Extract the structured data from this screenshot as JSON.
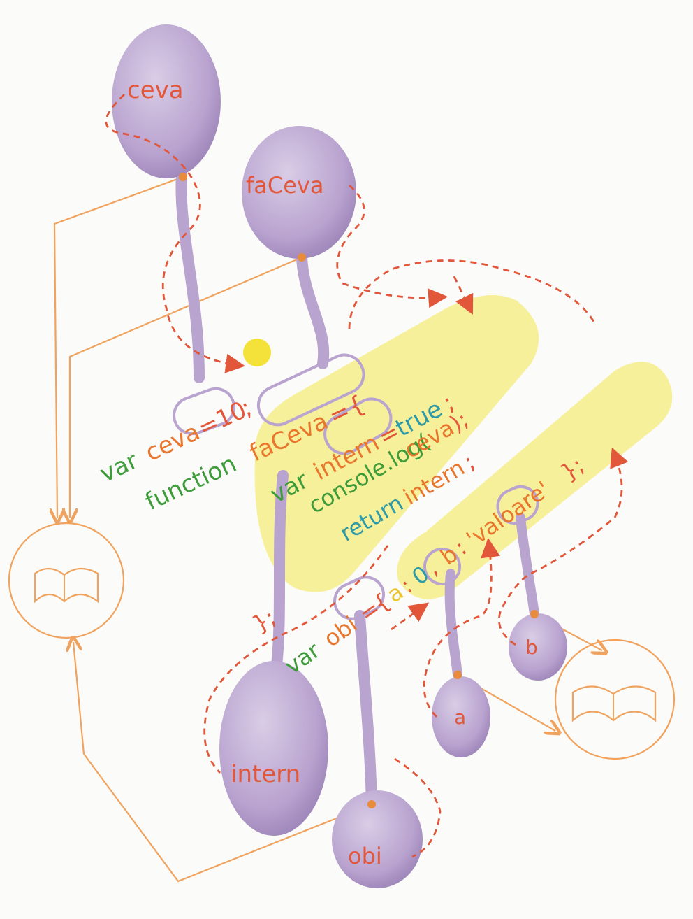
{
  "colors": {
    "paper": "#fbfbf9",
    "balloon": "#b9a3cf",
    "balloon_dark": "#9c84b8",
    "orange_line": "#f0a35e",
    "dashed_red": "#e2573a",
    "keyword_green": "#3e9c3a",
    "identifier_orange": "#e8762d",
    "yellow_highlight": "#f6ec7a",
    "teal": "#2d9aa8"
  },
  "balloons": {
    "ceva": "ceva",
    "faceva": "faCeva",
    "intern": "intern",
    "obi": "obi",
    "a": "a",
    "b": "b"
  },
  "code": {
    "line1": {
      "kw": "var",
      "name": "ceva",
      "eq": "=",
      "value": "10",
      "end": ";"
    },
    "line2": {
      "kw": "function",
      "name": "faCeva",
      "eq": "=",
      "brace": "{"
    },
    "line3": {
      "kw": "var",
      "name": "intern",
      "eq": "=",
      "value": "true",
      "end": ";"
    },
    "line4": {
      "obj": "console.log(",
      "arg": "ceva",
      "close": ");"
    },
    "line5": {
      "kw": "return",
      "name": "intern",
      "end": ";"
    },
    "line6": {
      "close": "};"
    },
    "line7": {
      "kw": "var",
      "name": "obi",
      "eq": "=",
      "open": "{",
      "a": "a",
      "colon_a": ":",
      "a_val": "0",
      "comma": ",",
      "b": "b",
      "colon_b": ":",
      "b_val": "'valoare'",
      "close": "};"
    }
  },
  "icons": [
    "book-icon",
    "book-icon"
  ]
}
